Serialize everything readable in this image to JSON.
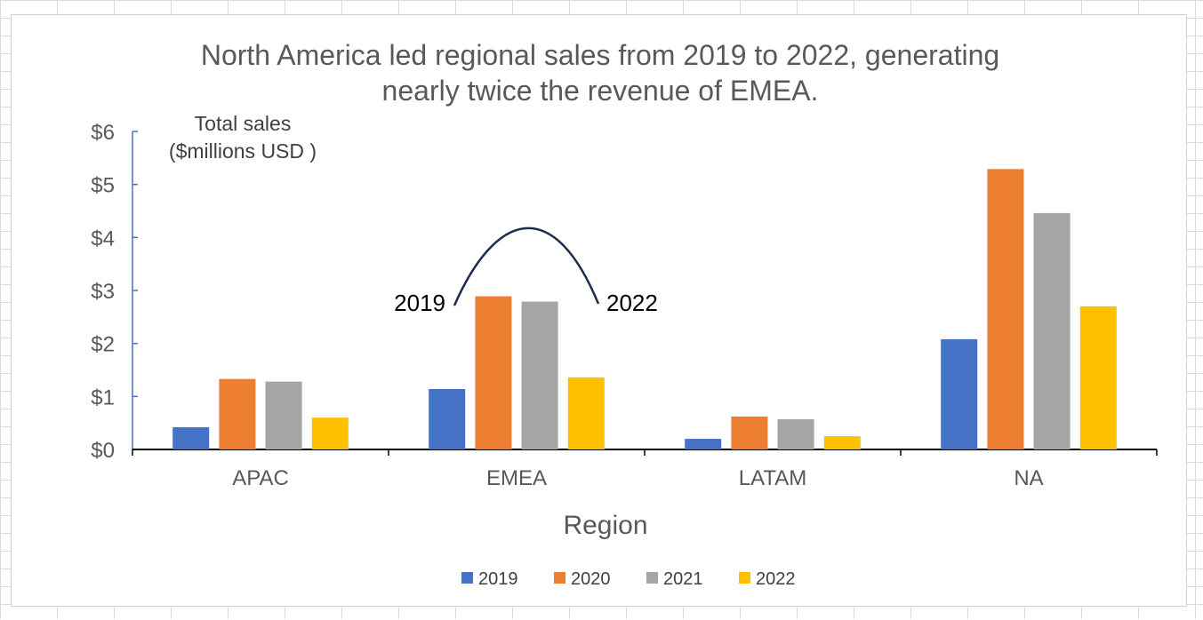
{
  "chart_data": {
    "type": "bar",
    "title_lines": [
      "North America led regional sales from 2019 to 2022, generating",
      "nearly twice the revenue of EMEA."
    ],
    "ylabel_lines": [
      "Total sales",
      "($millions USD )"
    ],
    "xlabel": "Region",
    "categories": [
      "APAC",
      "EMEA",
      "LATAM",
      "NA"
    ],
    "series": [
      {
        "name": "2019",
        "color": "#4472C4",
        "values": [
          0.42,
          1.14,
          0.2,
          2.08
        ]
      },
      {
        "name": "2020",
        "color": "#ED7D31",
        "values": [
          1.33,
          2.89,
          0.62,
          5.29
        ]
      },
      {
        "name": "2021",
        "color": "#A5A5A5",
        "values": [
          1.28,
          2.79,
          0.57,
          4.46
        ]
      },
      {
        "name": "2022",
        "color": "#FFC000",
        "values": [
          0.6,
          1.36,
          0.25,
          2.7
        ]
      }
    ],
    "ylim": [
      0,
      6
    ],
    "yticks": [
      "$0",
      "$1",
      "$2",
      "$3",
      "$4",
      "$5",
      "$6"
    ],
    "grid": false,
    "legend": "bottom",
    "annotation": {
      "left": "2019",
      "right": "2022",
      "category": "EMEA"
    }
  }
}
